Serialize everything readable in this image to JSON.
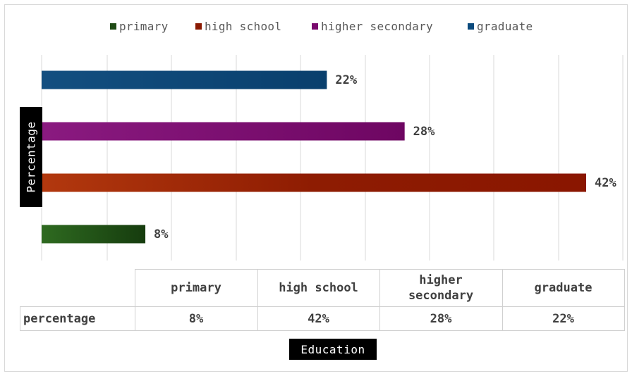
{
  "chart_data": {
    "type": "bar",
    "orientation": "horizontal",
    "categories": [
      "primary",
      "high school",
      "higher secondary",
      "graduate"
    ],
    "values": [
      8,
      42,
      28,
      22
    ],
    "value_labels": [
      "8%",
      "42%",
      "28%",
      "22%"
    ],
    "colors": [
      "#1e4a14",
      "#8a1a02",
      "#7a0a6e",
      "#0b4a7d"
    ],
    "xlim": [
      0,
      42
    ],
    "xlabel": "Education",
    "ylabel": "Percentage",
    "legend": {
      "position": "top",
      "entries": [
        "primary",
        "high school",
        "higher secondary",
        "graduate"
      ]
    },
    "grid": "vertical",
    "data_table": {
      "row_label": "percentage",
      "headers": [
        "primary",
        "high school",
        "higher\nsecondary",
        "graduate"
      ],
      "cells": [
        "8%",
        "42%",
        "28%",
        "22%"
      ]
    }
  }
}
